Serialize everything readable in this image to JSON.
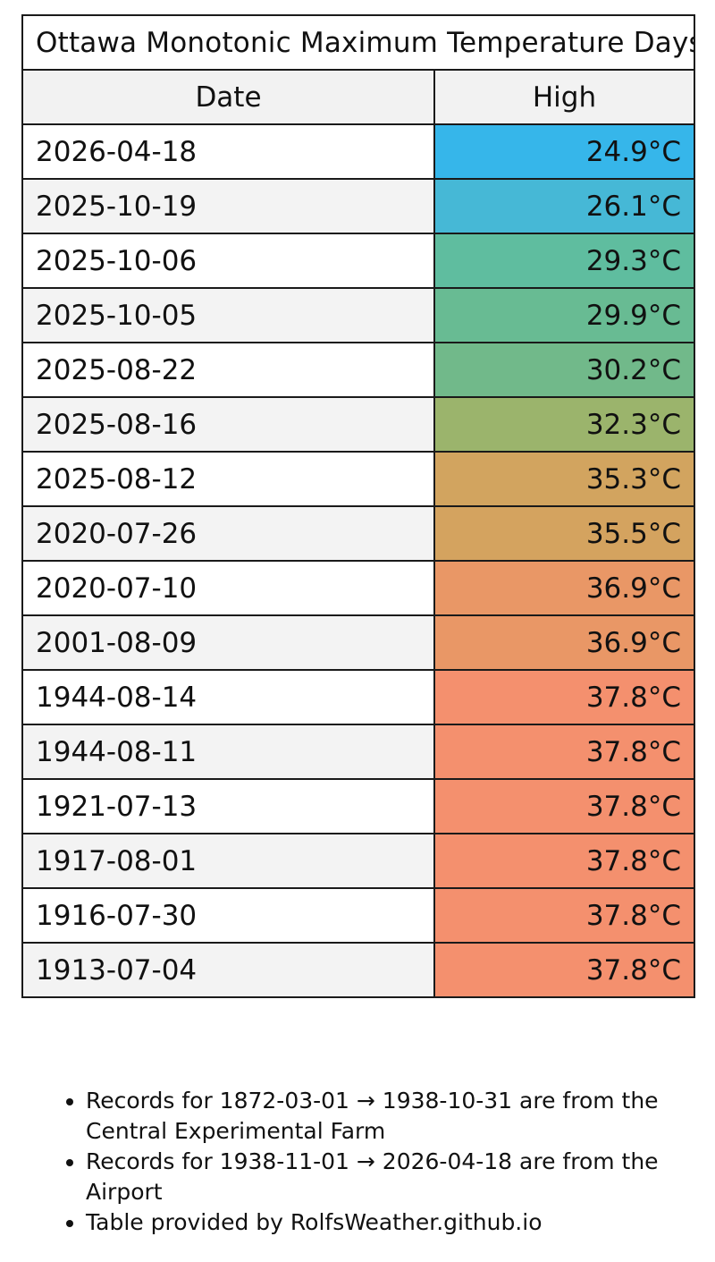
{
  "table": {
    "title": "Ottawa Monotonic Maximum Temperature Days",
    "headers": {
      "date": "Date",
      "high": "High"
    },
    "rows": [
      {
        "date": "2026-04-18",
        "high": "24.9°C",
        "color": "#36b6ea"
      },
      {
        "date": "2025-10-19",
        "high": "26.1°C",
        "color": "#46b8d6"
      },
      {
        "date": "2025-10-06",
        "high": "29.3°C",
        "color": "#5fbd9f"
      },
      {
        "date": "2025-10-05",
        "high": "29.9°C",
        "color": "#68bb93"
      },
      {
        "date": "2025-08-22",
        "high": "30.2°C",
        "color": "#71b98a"
      },
      {
        "date": "2025-08-16",
        "high": "32.3°C",
        "color": "#9bb46c"
      },
      {
        "date": "2025-08-12",
        "high": "35.3°C",
        "color": "#d2a45f"
      },
      {
        "date": "2020-07-26",
        "high": "35.5°C",
        "color": "#d4a35f"
      },
      {
        "date": "2020-07-10",
        "high": "36.9°C",
        "color": "#e99766"
      },
      {
        "date": "2001-08-09",
        "high": "36.9°C",
        "color": "#e99766"
      },
      {
        "date": "1944-08-14",
        "high": "37.8°C",
        "color": "#f4906e"
      },
      {
        "date": "1944-08-11",
        "high": "37.8°C",
        "color": "#f4906e"
      },
      {
        "date": "1921-07-13",
        "high": "37.8°C",
        "color": "#f4906e"
      },
      {
        "date": "1917-08-01",
        "high": "37.8°C",
        "color": "#f4906e"
      },
      {
        "date": "1916-07-30",
        "high": "37.8°C",
        "color": "#f4906e"
      },
      {
        "date": "1913-07-04",
        "high": "37.8°C",
        "color": "#f4906e"
      }
    ]
  },
  "notes": [
    "Records for 1872-03-01 → 1938-10-31 are from the Central Experimental Farm",
    "Records for 1938-11-01 → 2026-04-18 are from the Airport",
    "Table provided by RolfsWeather.github.io"
  ]
}
